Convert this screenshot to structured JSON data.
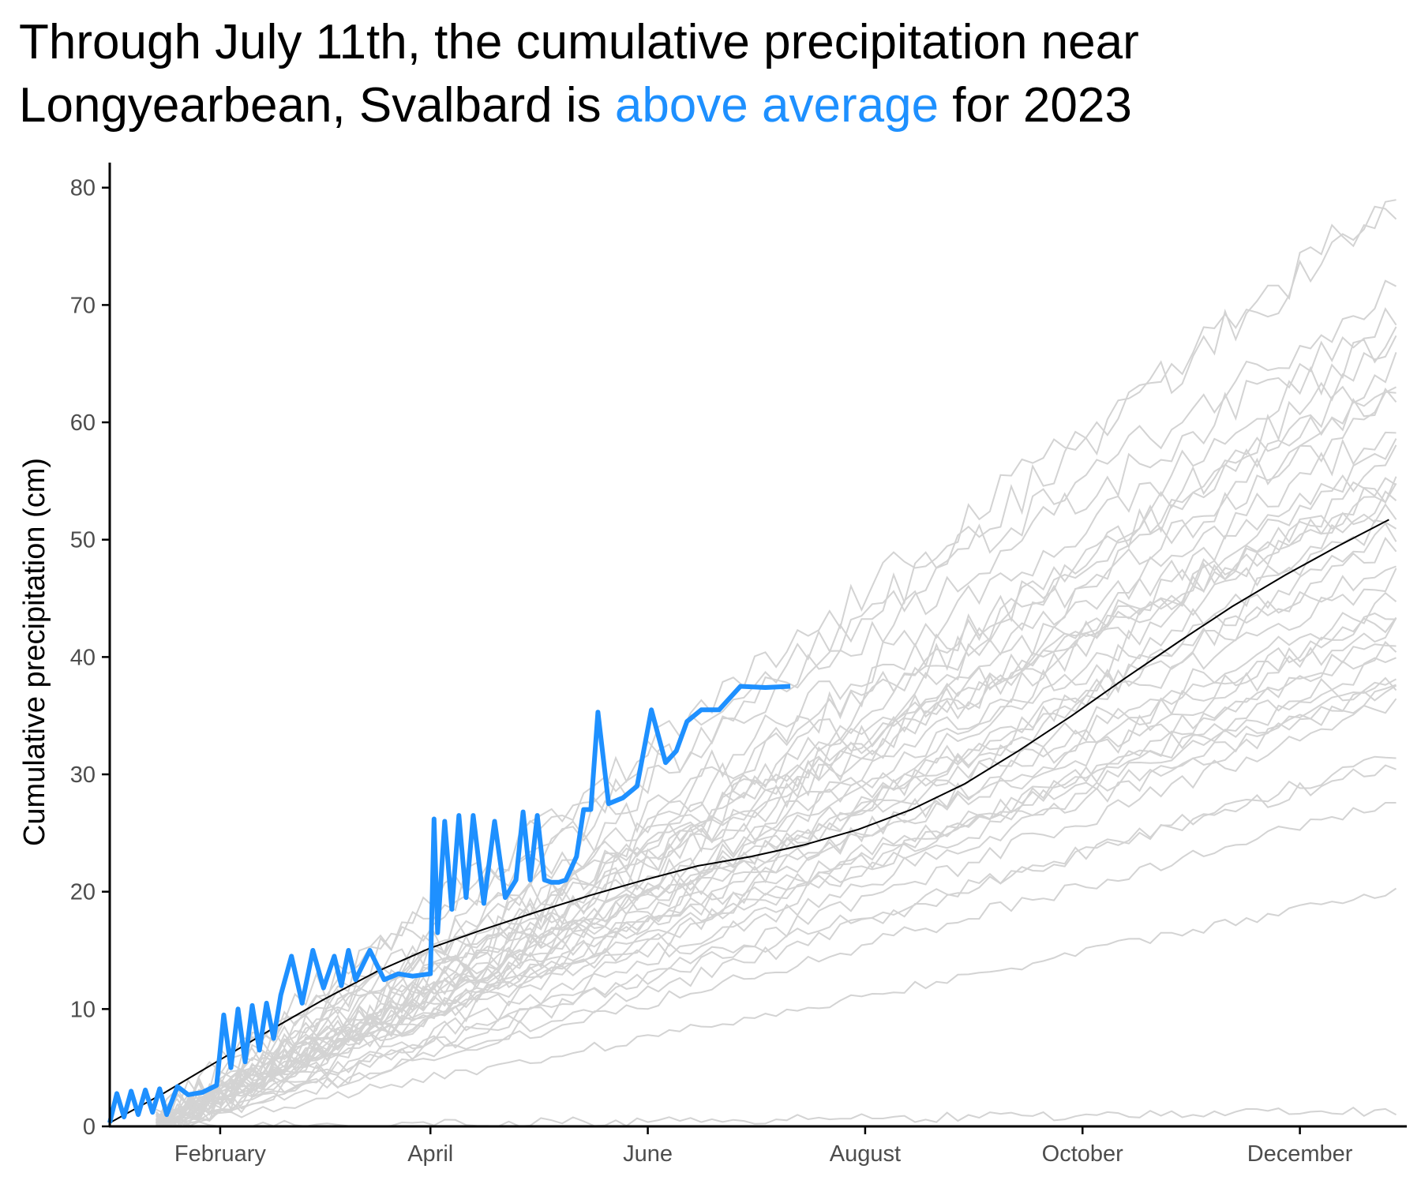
{
  "chart_title": {
    "line1": "Through July 11th, the cumulative precipitation near",
    "line2_before": "Longyearbean, Svalbard is ",
    "line2_highlight": "above average",
    "line2_after": " for 2023"
  },
  "colors": {
    "highlight": "#1e90ff",
    "history": "#d3d3d3",
    "mean": "#000000",
    "axis": "#000000",
    "tick_text": "#4d4d4d"
  },
  "chart_data": {
    "type": "line",
    "title": "Through July 11th, the cumulative precipitation near Longyearbean, Svalbard is above average for 2023",
    "xlabel": "",
    "ylabel": "Cumulative precipitation (cm)",
    "x_unit": "day of year",
    "xlim": [
      1,
      365
    ],
    "ylim": [
      0,
      82
    ],
    "x_ticks": [
      {
        "label": "February",
        "day": 32
      },
      {
        "label": "April",
        "day": 91
      },
      {
        "label": "June",
        "day": 152
      },
      {
        "label": "August",
        "day": 213
      },
      {
        "label": "October",
        "day": 274
      },
      {
        "label": "December",
        "day": 335
      }
    ],
    "y_ticks": [
      0,
      10,
      20,
      30,
      40,
      50,
      60,
      70,
      80
    ],
    "grid": false,
    "legend": "none",
    "historical_year_end_totals": [
      1.3,
      20.2,
      27.8,
      31,
      32,
      36.5,
      37,
      37.5,
      38,
      38.5,
      40,
      41,
      42,
      43,
      43.5,
      44,
      45,
      47,
      48.5,
      50,
      51,
      52,
      53,
      54,
      54.5,
      55,
      56,
      57,
      58,
      60,
      62,
      63,
      64,
      65,
      67,
      68,
      70,
      72,
      78.5,
      80
    ],
    "series": [
      {
        "name": "2023",
        "x": [
          1,
          3,
          5,
          7,
          9,
          11,
          13,
          15,
          17,
          20,
          23,
          27,
          31,
          33,
          35,
          37,
          39,
          41,
          43,
          45,
          47,
          49,
          52,
          55,
          58,
          61,
          64,
          66,
          68,
          70,
          74,
          78,
          82,
          86,
          91,
          92,
          93,
          95,
          97,
          99,
          101,
          103,
          106,
          109,
          112,
          115,
          117,
          119,
          121,
          123,
          125,
          127,
          129,
          132,
          134,
          136,
          138,
          141,
          145,
          149,
          153,
          157,
          160,
          163,
          167,
          172,
          178,
          185,
          192
        ],
        "y": [
          0.3,
          2.8,
          0.8,
          3.0,
          1.0,
          3.1,
          1.2,
          3.2,
          1.0,
          3.4,
          2.7,
          2.9,
          3.5,
          9.5,
          5.0,
          10.0,
          5.5,
          10.3,
          6.5,
          10.5,
          7.5,
          11.2,
          14.5,
          10.5,
          15.0,
          11.8,
          14.5,
          12.0,
          15.0,
          12.5,
          15.0,
          12.5,
          13.0,
          12.8,
          13.0,
          26.2,
          16.5,
          26.0,
          18.5,
          26.5,
          19.5,
          26.5,
          19.0,
          26.0,
          19.5,
          21.0,
          26.8,
          21.0,
          26.5,
          21.0,
          20.8,
          20.8,
          21.0,
          23.0,
          27.0,
          27.0,
          35.3,
          27.5,
          28.0,
          29.0,
          35.5,
          31.0,
          32.0,
          34.5,
          35.5,
          35.5,
          37.5,
          37.4,
          37.5
        ]
      },
      {
        "name": "Average",
        "x": [
          1,
          16,
          31,
          46,
          61,
          76,
          91,
          106,
          121,
          136,
          151,
          166,
          181,
          196,
          211,
          226,
          241,
          256,
          271,
          286,
          301,
          316,
          331,
          346,
          360
        ],
        "y": [
          0.3,
          2.8,
          5.5,
          8.2,
          10.8,
          13.2,
          15.2,
          16.8,
          18.3,
          19.7,
          21.0,
          22.2,
          23.0,
          24.0,
          25.3,
          27.0,
          29.2,
          32.0,
          35.0,
          38.2,
          41.3,
          44.3,
          47.0,
          49.5,
          51.7
        ]
      }
    ]
  }
}
